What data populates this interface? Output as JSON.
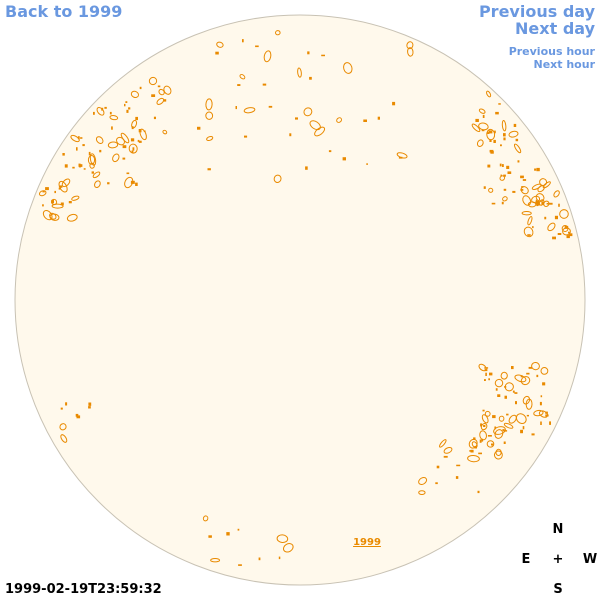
{
  "navigation": {
    "back_label": "Back to 1999",
    "previous_day_label": "Previous day",
    "next_day_label": "Next day",
    "previous_hour_label": "Previous hour",
    "next_hour_label": "Next hour"
  },
  "disk": {
    "year_label": "1999",
    "fill_color": "#fff9ec",
    "border_color": "#c8c2b4",
    "contour_color": "#e98a00"
  },
  "timestamp": "1999-02-19T23:59:32",
  "compass": {
    "north": "N",
    "east": "E",
    "west": "W",
    "south": "S",
    "center": "+"
  },
  "colors": {
    "link": "#6a98e0",
    "text": "#000000"
  }
}
